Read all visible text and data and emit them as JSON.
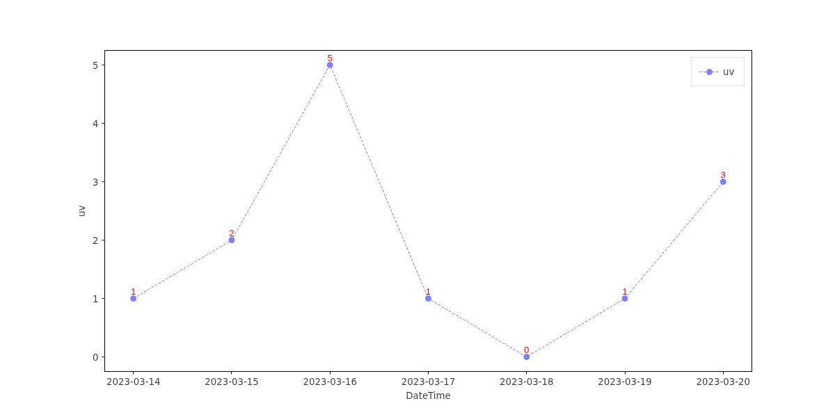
{
  "chart_data": {
    "type": "line",
    "xlabel": "DateTime",
    "ylabel": "uv",
    "x": [
      "2023-03-14",
      "2023-03-15",
      "2023-03-16",
      "2023-03-17",
      "2023-03-18",
      "2023-03-19",
      "2023-03-20"
    ],
    "series": [
      {
        "name": "uv",
        "color": "#8080ff",
        "values": [
          1,
          2,
          5,
          1,
          0,
          1,
          3
        ]
      }
    ],
    "xlim": [
      "2023-03-13T17:00",
      "2023-03-20T07:00"
    ],
    "xticks": [
      "2023-03-14",
      "2023-03-15",
      "2023-03-16",
      "2023-03-17",
      "2023-03-18",
      "2023-03-19",
      "2023-03-20"
    ],
    "ylim": [
      -0.25,
      5.25
    ],
    "yticks": [
      0,
      1,
      2,
      3,
      4,
      5
    ],
    "data_labels": true,
    "legend": "top right",
    "marker": "circle",
    "line_style": "dashed",
    "grid": false
  }
}
